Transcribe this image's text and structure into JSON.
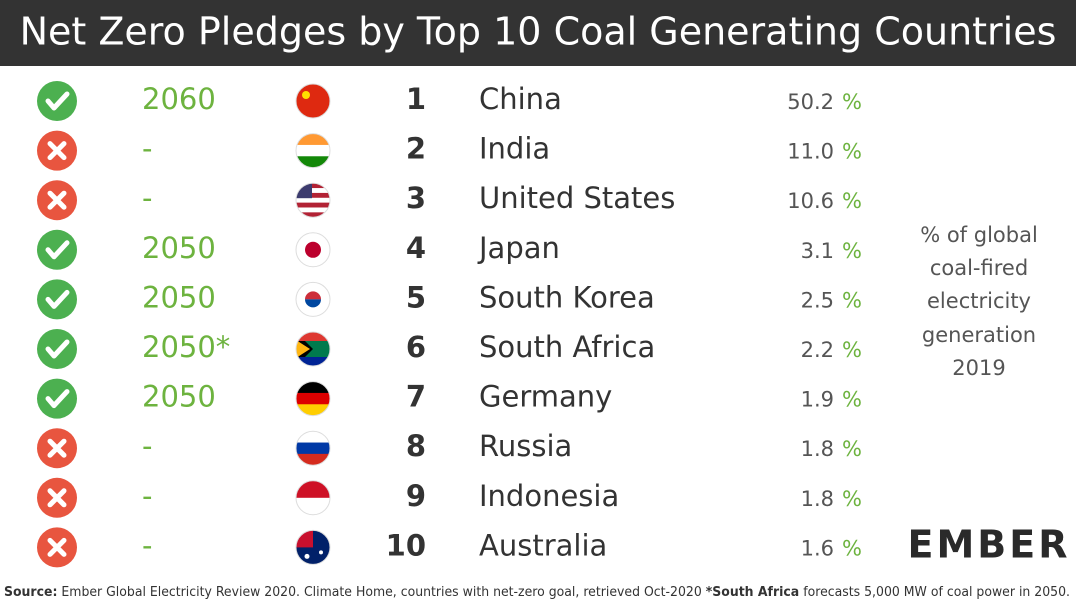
{
  "title": "Net Zero Pledges by Top 10 Coal Generating Countries",
  "unit": "%",
  "rows": [
    {
      "pledged": true,
      "pledge": "2060",
      "rank": 1,
      "country": "China",
      "share": "50.2"
    },
    {
      "pledged": false,
      "pledge": "-",
      "rank": 2,
      "country": "India",
      "share": "11.0"
    },
    {
      "pledged": false,
      "pledge": "-",
      "rank": 3,
      "country": "United States",
      "share": "10.6"
    },
    {
      "pledged": true,
      "pledge": "2050",
      "rank": 4,
      "country": "Japan",
      "share": "3.1"
    },
    {
      "pledged": true,
      "pledge": "2050",
      "rank": 5,
      "country": "South Korea",
      "share": "2.5"
    },
    {
      "pledged": true,
      "pledge": "2050*",
      "rank": 6,
      "country": "South Africa",
      "share": "2.2"
    },
    {
      "pledged": true,
      "pledge": "2050",
      "rank": 7,
      "country": "Germany",
      "share": "1.9"
    },
    {
      "pledged": false,
      "pledge": "-",
      "rank": 8,
      "country": "Russia",
      "share": "1.8"
    },
    {
      "pledged": false,
      "pledge": "-",
      "rank": 9,
      "country": "Indonesia",
      "share": "1.8"
    },
    {
      "pledged": false,
      "pledge": "-",
      "rank": 10,
      "country": "Australia",
      "share": "1.6"
    }
  ],
  "side_note": [
    "% of global",
    "coal-fired",
    "electricity",
    "generation",
    "2019"
  ],
  "logo": "EMBER",
  "source": {
    "label": "Source:",
    "text": "Ember Global Electricity Review 2020. Climate Home, countries with net-zero goal, retrieved Oct-2020",
    "note_label": "*South Africa",
    "note_text": "forecasts 5,000 MW of coal power in 2050."
  }
}
